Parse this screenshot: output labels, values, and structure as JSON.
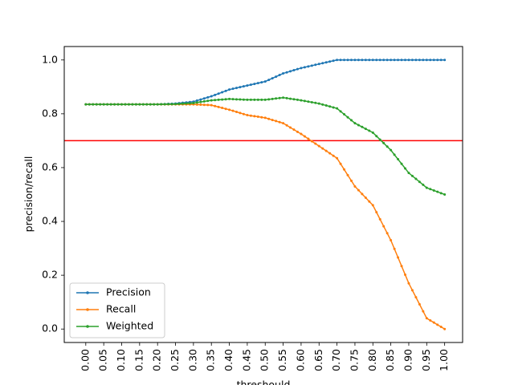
{
  "chart_data": {
    "type": "line",
    "title": "",
    "xlabel": "threshould",
    "ylabel": "precision/recall",
    "xlim": [
      -0.06,
      1.05
    ],
    "ylim": [
      -0.05,
      1.05
    ],
    "x_ticks": [
      "0.00",
      "0.05",
      "0.10",
      "0.15",
      "0.20",
      "0.25",
      "0.30",
      "0.35",
      "0.40",
      "0.45",
      "0.50",
      "0.55",
      "0.60",
      "0.65",
      "0.70",
      "0.75",
      "0.80",
      "0.85",
      "0.90",
      "0.95",
      "1.00"
    ],
    "y_ticks": [
      "0.0",
      "0.2",
      "0.4",
      "0.6",
      "0.8",
      "1.0"
    ],
    "grid": false,
    "legend_position": "lower-left",
    "reference_line": {
      "y": 0.7,
      "color": "#ff0000"
    },
    "x": [
      0.0,
      0.05,
      0.1,
      0.15,
      0.2,
      0.25,
      0.3,
      0.35,
      0.4,
      0.45,
      0.5,
      0.55,
      0.6,
      0.65,
      0.7,
      0.75,
      0.8,
      0.85,
      0.9,
      0.95,
      1.0
    ],
    "series": [
      {
        "name": "Precision",
        "color": "#1f77b4",
        "values": [
          0.835,
          0.835,
          0.835,
          0.835,
          0.835,
          0.838,
          0.845,
          0.865,
          0.89,
          0.905,
          0.92,
          0.95,
          0.97,
          0.985,
          1.0,
          1.0,
          1.0,
          1.0,
          1.0,
          1.0,
          1.0
        ]
      },
      {
        "name": "Recall",
        "color": "#ff7f0e",
        "values": [
          0.835,
          0.835,
          0.835,
          0.835,
          0.835,
          0.835,
          0.835,
          0.832,
          0.815,
          0.795,
          0.785,
          0.765,
          0.725,
          0.68,
          0.635,
          0.53,
          0.46,
          0.33,
          0.17,
          0.04,
          0.0
        ]
      },
      {
        "name": "Weighted",
        "color": "#2ca02c",
        "values": [
          0.835,
          0.835,
          0.835,
          0.835,
          0.835,
          0.836,
          0.84,
          0.85,
          0.855,
          0.852,
          0.852,
          0.86,
          0.85,
          0.838,
          0.82,
          0.765,
          0.73,
          0.665,
          0.58,
          0.525,
          0.5
        ]
      }
    ]
  }
}
